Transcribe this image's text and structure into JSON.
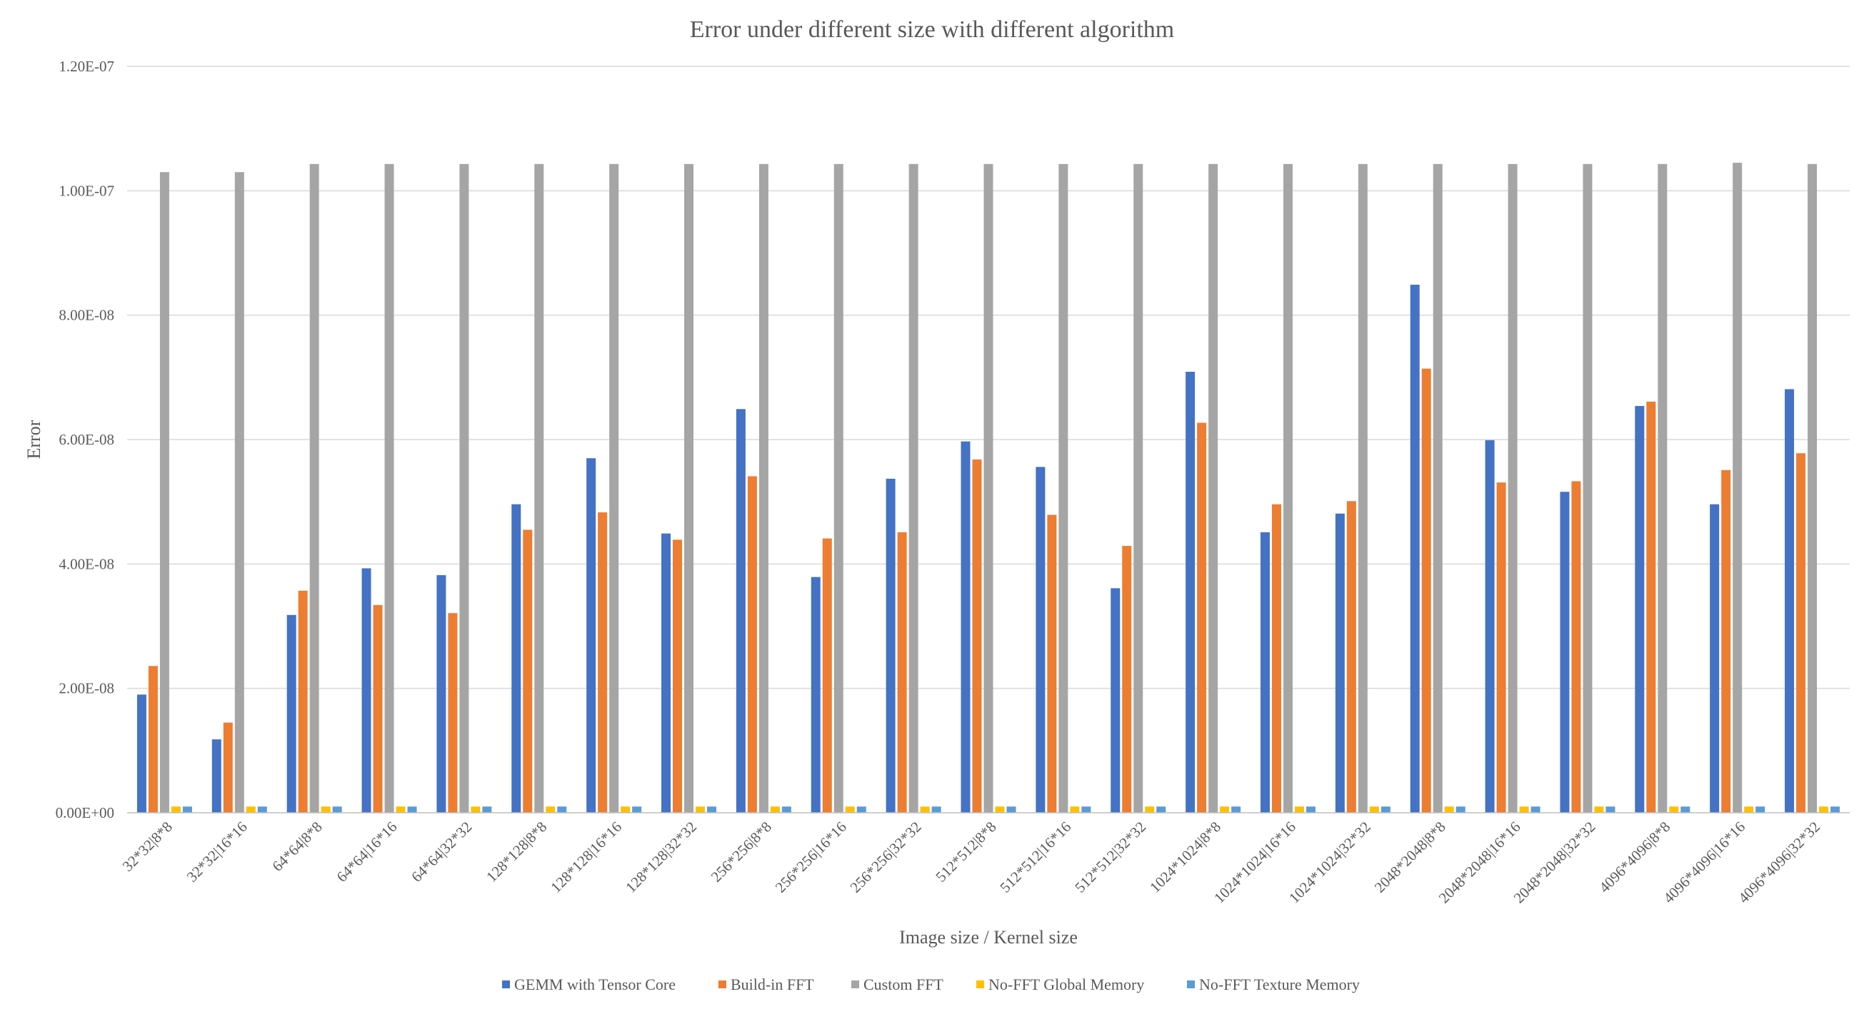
{
  "chart_data": {
    "type": "bar",
    "title": "Error under different size with different algorithm",
    "xlabel": "Image size / Kernel size",
    "ylabel": "Error",
    "ylim": [
      0,
      1.2e-07
    ],
    "y_ticks": [
      0,
      2e-08,
      4e-08,
      6e-08,
      8e-08,
      1e-07,
      1.2e-07
    ],
    "y_tick_labels": [
      "0.00E+00",
      "2.00E-08",
      "4.00E-08",
      "6.00E-08",
      "8.00E-08",
      "1.00E-07",
      "1.20E-07"
    ],
    "grid": true,
    "legend_position": "bottom",
    "categories": [
      "32*32|8*8",
      "32*32|16*16",
      "64*64|8*8",
      "64*64|16*16",
      "64*64|32*32",
      "128*128|8*8",
      "128*128|16*16",
      "128*128|32*32",
      "256*256|8*8",
      "256*256|16*16",
      "256*256|32*32",
      "512*512|8*8",
      "512*512|16*16",
      "512*512|32*32",
      "1024*1024|8*8",
      "1024*1024|16*16",
      "1024*1024|32*32",
      "2048*2048|8*8",
      "2048*2048|16*16",
      "2048*2048|32*32",
      "4096*4096|8*8",
      "4096*4096|16*16",
      "4096*4096|32*32"
    ],
    "series": [
      {
        "name": "GEMM with Tensor Core",
        "color": "#4472c4",
        "values": [
          1.9e-08,
          1.18e-08,
          3.18e-08,
          3.93e-08,
          3.82e-08,
          4.96e-08,
          5.7e-08,
          4.49e-08,
          6.49e-08,
          3.79e-08,
          5.37e-08,
          5.97e-08,
          5.56e-08,
          3.61e-08,
          7.09e-08,
          4.51e-08,
          4.81e-08,
          8.49e-08,
          5.99e-08,
          5.16e-08,
          6.54e-08,
          4.96e-08,
          6.81e-08
        ]
      },
      {
        "name": "Build-in FFT",
        "color": "#ed7d31",
        "values": [
          2.36e-08,
          1.45e-08,
          3.57e-08,
          3.34e-08,
          3.21e-08,
          4.55e-08,
          4.83e-08,
          4.39e-08,
          5.41e-08,
          4.41e-08,
          4.51e-08,
          5.68e-08,
          4.79e-08,
          4.29e-08,
          6.27e-08,
          4.96e-08,
          5.01e-08,
          7.14e-08,
          5.31e-08,
          5.33e-08,
          6.61e-08,
          5.51e-08,
          5.78e-08
        ]
      },
      {
        "name": "Custom FFT",
        "color": "#a5a5a5",
        "values": [
          1.03e-07,
          1.03e-07,
          1.043e-07,
          1.043e-07,
          1.043e-07,
          1.043e-07,
          1.043e-07,
          1.043e-07,
          1.043e-07,
          1.043e-07,
          1.043e-07,
          1.043e-07,
          1.043e-07,
          1.043e-07,
          1.043e-07,
          1.043e-07,
          1.043e-07,
          1.043e-07,
          1.043e-07,
          1.043e-07,
          1.043e-07,
          1.045e-07,
          1.043e-07
        ]
      },
      {
        "name": "No-FFT Global Memory",
        "color": "#ffc000",
        "values": [
          1e-09,
          1e-09,
          1e-09,
          1e-09,
          1e-09,
          1e-09,
          1e-09,
          1e-09,
          1e-09,
          1e-09,
          1e-09,
          1e-09,
          1e-09,
          1e-09,
          1e-09,
          1e-09,
          1e-09,
          1e-09,
          1e-09,
          1e-09,
          1e-09,
          1e-09,
          1e-09
        ]
      },
      {
        "name": "No-FFT Texture Memory",
        "color": "#5b9bd5",
        "values": [
          1e-09,
          1e-09,
          1e-09,
          1e-09,
          1e-09,
          1e-09,
          1e-09,
          1e-09,
          1e-09,
          1e-09,
          1e-09,
          1e-09,
          1e-09,
          1e-09,
          1e-09,
          1e-09,
          1e-09,
          1e-09,
          1e-09,
          1e-09,
          1e-09,
          1e-09,
          1e-09
        ]
      }
    ]
  }
}
